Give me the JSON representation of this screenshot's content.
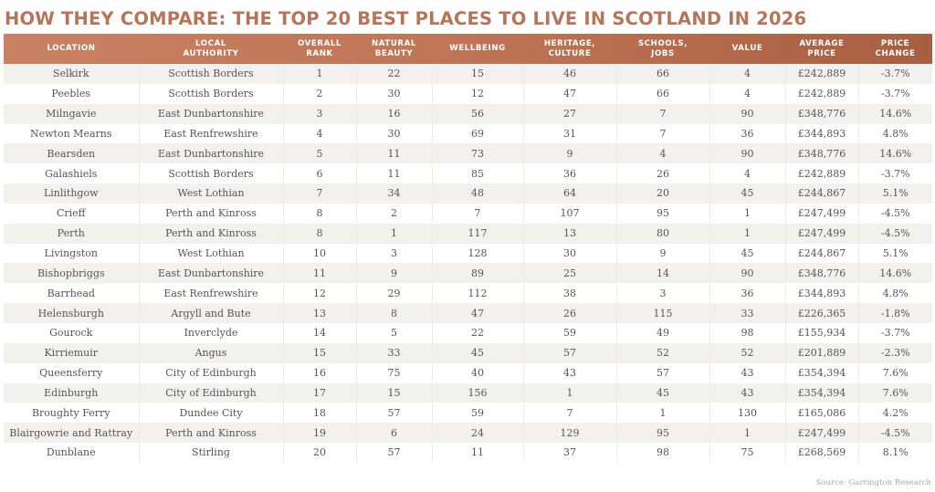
{
  "title": "HOW THEY COMPARE: THE TOP 20 BEST PLACES TO LIVE IN SCOTLAND IN 2026",
  "colors": {
    "title": "#b87459",
    "header_left": "#c98163",
    "header_right": "#a85f41",
    "stripe": "#f2f1ee"
  },
  "headers": {
    "location": "LOCATION",
    "authority_1": "LOCAL",
    "authority_2": "AUTHORITY",
    "rank_1": "OVERALL",
    "rank_2": "RANK",
    "beauty_1": "NATURAL",
    "beauty_2": "BEAUTY",
    "wellbeing": "WELLBEING",
    "heritage_1": "HERITAGE,",
    "heritage_2": "CULTURE",
    "schools_1": "SCHOOLS,",
    "schools_2": "JOBS",
    "value": "VALUE",
    "price_1": "AVERAGE",
    "price_2": "PRICE",
    "change_1": "PRICE",
    "change_2": "CHANGE"
  },
  "rows": [
    {
      "location": "Selkirk",
      "authority": "Scottish Borders",
      "rank": "1",
      "beauty": "22",
      "wellbeing": "15",
      "heritage": "46",
      "schools": "66",
      "value": "4",
      "price": "£242,889",
      "change": "-3.7%"
    },
    {
      "location": "Peebles",
      "authority": "Scottish Borders",
      "rank": "2",
      "beauty": "30",
      "wellbeing": "12",
      "heritage": "47",
      "schools": "66",
      "value": "4",
      "price": "£242,889",
      "change": "-3.7%"
    },
    {
      "location": "Milngavie",
      "authority": "East Dunbartonshire",
      "rank": "3",
      "beauty": "16",
      "wellbeing": "56",
      "heritage": "27",
      "schools": "7",
      "value": "90",
      "price": "£348,776",
      "change": "14.6%"
    },
    {
      "location": "Newton Mearns",
      "authority": "East Renfrewshire",
      "rank": "4",
      "beauty": "30",
      "wellbeing": "69",
      "heritage": "31",
      "schools": "7",
      "value": "36",
      "price": "£344,893",
      "change": "4.8%"
    },
    {
      "location": "Bearsden",
      "authority": "East Dunbartonshire",
      "rank": "5",
      "beauty": "11",
      "wellbeing": "73",
      "heritage": "9",
      "schools": "4",
      "value": "90",
      "price": "£348,776",
      "change": "14.6%"
    },
    {
      "location": "Galashiels",
      "authority": "Scottish Borders",
      "rank": "6",
      "beauty": "11",
      "wellbeing": "85",
      "heritage": "36",
      "schools": "26",
      "value": "4",
      "price": "£242,889",
      "change": "-3.7%"
    },
    {
      "location": "Linlithgow",
      "authority": "West Lothian",
      "rank": "7",
      "beauty": "34",
      "wellbeing": "48",
      "heritage": "64",
      "schools": "20",
      "value": "45",
      "price": "£244,867",
      "change": "5.1%"
    },
    {
      "location": "Crieff",
      "authority": "Perth and Kinross",
      "rank": "8",
      "beauty": "2",
      "wellbeing": "7",
      "heritage": "107",
      "schools": "95",
      "value": "1",
      "price": "£247,499",
      "change": "-4.5%"
    },
    {
      "location": "Perth",
      "authority": "Perth and Kinross",
      "rank": "8",
      "beauty": "1",
      "wellbeing": "117",
      "heritage": "13",
      "schools": "80",
      "value": "1",
      "price": "£247,499",
      "change": "-4.5%"
    },
    {
      "location": "Livingston",
      "authority": "West Lothian",
      "rank": "10",
      "beauty": "3",
      "wellbeing": "128",
      "heritage": "30",
      "schools": "9",
      "value": "45",
      "price": "£244,867",
      "change": "5.1%"
    },
    {
      "location": "Bishopbriggs",
      "authority": "East Dunbartonshire",
      "rank": "11",
      "beauty": "9",
      "wellbeing": "89",
      "heritage": "25",
      "schools": "14",
      "value": "90",
      "price": "£348,776",
      "change": "14.6%"
    },
    {
      "location": "Barrhead",
      "authority": "East Renfrewshire",
      "rank": "12",
      "beauty": "29",
      "wellbeing": "112",
      "heritage": "38",
      "schools": "3",
      "value": "36",
      "price": "£344,893",
      "change": "4.8%"
    },
    {
      "location": "Helensburgh",
      "authority": "Argyll and Bute",
      "rank": "13",
      "beauty": "8",
      "wellbeing": "47",
      "heritage": "26",
      "schools": "115",
      "value": "33",
      "price": "£226,365",
      "change": "-1.8%"
    },
    {
      "location": "Gourock",
      "authority": "Inverclyde",
      "rank": "14",
      "beauty": "5",
      "wellbeing": "22",
      "heritage": "59",
      "schools": "49",
      "value": "98",
      "price": "£155,934",
      "change": "-3.7%"
    },
    {
      "location": "Kirriemuir",
      "authority": "Angus",
      "rank": "15",
      "beauty": "33",
      "wellbeing": "45",
      "heritage": "57",
      "schools": "52",
      "value": "52",
      "price": "£201,889",
      "change": "-2.3%"
    },
    {
      "location": "Queensferry",
      "authority": "City of Edinburgh",
      "rank": "16",
      "beauty": "75",
      "wellbeing": "40",
      "heritage": "43",
      "schools": "57",
      "value": "43",
      "price": "£354,394",
      "change": "7.6%"
    },
    {
      "location": "Edinburgh",
      "authority": "City of Edinburgh",
      "rank": "17",
      "beauty": "15",
      "wellbeing": "156",
      "heritage": "1",
      "schools": "45",
      "value": "43",
      "price": "£354,394",
      "change": "7.6%"
    },
    {
      "location": "Broughty Ferry",
      "authority": "Dundee City",
      "rank": "18",
      "beauty": "57",
      "wellbeing": "59",
      "heritage": "7",
      "schools": "1",
      "value": "130",
      "price": "£165,086",
      "change": "4.2%"
    },
    {
      "location": "Blairgowrie and Rattray",
      "authority": "Perth and Kinross",
      "rank": "19",
      "beauty": "6",
      "wellbeing": "24",
      "heritage": "129",
      "schools": "95",
      "value": "1",
      "price": "£247,499",
      "change": "-4.5%"
    },
    {
      "location": "Dunblane",
      "authority": "Stirling",
      "rank": "20",
      "beauty": "57",
      "wellbeing": "11",
      "heritage": "37",
      "schools": "98",
      "value": "75",
      "price": "£268,569",
      "change": "8.1%"
    }
  ],
  "source": "Source: Garrington Research",
  "chart_data": {
    "type": "table",
    "title": "HOW THEY COMPARE: THE TOP 20 BEST PLACES TO LIVE IN SCOTLAND IN 2026",
    "columns": [
      "Location",
      "Local Authority",
      "Overall Rank",
      "Natural Beauty",
      "Wellbeing",
      "Heritage, Culture",
      "Schools, Jobs",
      "Value",
      "Average Price",
      "Price Change"
    ],
    "rows": [
      [
        "Selkirk",
        "Scottish Borders",
        1,
        22,
        15,
        46,
        66,
        4,
        "£242,889",
        "-3.7%"
      ],
      [
        "Peebles",
        "Scottish Borders",
        2,
        30,
        12,
        47,
        66,
        4,
        "£242,889",
        "-3.7%"
      ],
      [
        "Milngavie",
        "East Dunbartonshire",
        3,
        16,
        56,
        27,
        7,
        90,
        "£348,776",
        "14.6%"
      ],
      [
        "Newton Mearns",
        "East Renfrewshire",
        4,
        30,
        69,
        31,
        7,
        36,
        "£344,893",
        "4.8%"
      ],
      [
        "Bearsden",
        "East Dunbartonshire",
        5,
        11,
        73,
        9,
        4,
        90,
        "£348,776",
        "14.6%"
      ],
      [
        "Galashiels",
        "Scottish Borders",
        6,
        11,
        85,
        36,
        26,
        4,
        "£242,889",
        "-3.7%"
      ],
      [
        "Linlithgow",
        "West Lothian",
        7,
        34,
        48,
        64,
        20,
        45,
        "£244,867",
        "5.1%"
      ],
      [
        "Crieff",
        "Perth and Kinross",
        8,
        2,
        7,
        107,
        95,
        1,
        "£247,499",
        "-4.5%"
      ],
      [
        "Perth",
        "Perth and Kinross",
        8,
        1,
        117,
        13,
        80,
        1,
        "£247,499",
        "-4.5%"
      ],
      [
        "Livingston",
        "West Lothian",
        10,
        3,
        128,
        30,
        9,
        45,
        "£244,867",
        "5.1%"
      ],
      [
        "Bishopbriggs",
        "East Dunbartonshire",
        11,
        9,
        89,
        25,
        14,
        90,
        "£348,776",
        "14.6%"
      ],
      [
        "Barrhead",
        "East Renfrewshire",
        12,
        29,
        112,
        38,
        3,
        36,
        "£344,893",
        "4.8%"
      ],
      [
        "Helensburgh",
        "Argyll and Bute",
        13,
        8,
        47,
        26,
        115,
        33,
        "£226,365",
        "-1.8%"
      ],
      [
        "Gourock",
        "Inverclyde",
        14,
        5,
        22,
        59,
        49,
        98,
        "£155,934",
        "-3.7%"
      ],
      [
        "Kirriemuir",
        "Angus",
        15,
        33,
        45,
        57,
        52,
        52,
        "£201,889",
        "-2.3%"
      ],
      [
        "Queensferry",
        "City of Edinburgh",
        16,
        75,
        40,
        43,
        57,
        43,
        "£354,394",
        "7.6%"
      ],
      [
        "Edinburgh",
        "City of Edinburgh",
        17,
        15,
        156,
        1,
        45,
        43,
        "£354,394",
        "7.6%"
      ],
      [
        "Broughty Ferry",
        "Dundee City",
        18,
        57,
        59,
        7,
        1,
        130,
        "£165,086",
        "4.2%"
      ],
      [
        "Blairgowrie and Rattray",
        "Perth and Kinross",
        19,
        6,
        24,
        129,
        95,
        1,
        "£247,499",
        "-4.5%"
      ],
      [
        "Dunblane",
        "Stirling",
        20,
        57,
        11,
        37,
        98,
        75,
        "£268,569",
        "8.1%"
      ]
    ],
    "annotations": [
      "Source: Garrington Research"
    ]
  }
}
